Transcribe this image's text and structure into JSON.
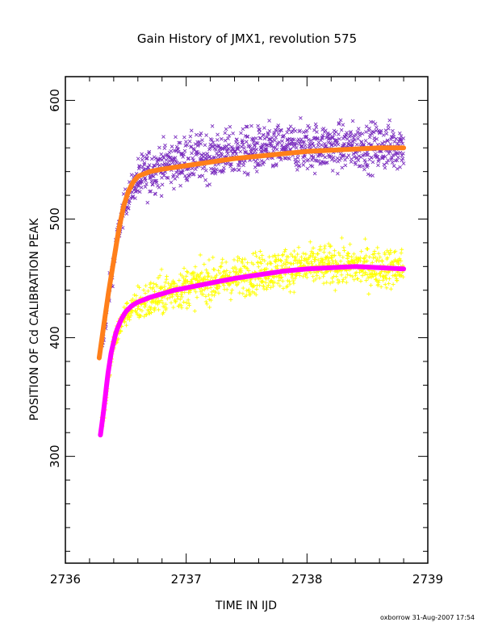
{
  "chart_data": {
    "type": "scatter",
    "title": "Gain History of JMX1, revolution 575",
    "xlabel": "TIME IN IJD",
    "ylabel": "POSITION OF Cd CALIBRATION PEAK",
    "xlim": [
      2736,
      2739
    ],
    "ylim": [
      210,
      620
    ],
    "x_ticks": [
      2736,
      2737,
      2738,
      2739
    ],
    "x_tick_labels": [
      "2736",
      "2737",
      "2738",
      "2739"
    ],
    "y_ticks": [
      300,
      400,
      500,
      600
    ],
    "y_tick_labels": [
      "300",
      "400",
      "500",
      "600"
    ],
    "grid": false,
    "legend": "none",
    "footer": "oxborrow 31-Aug-2007 17:54",
    "series": [
      {
        "marker": "x",
        "color": "#7b2fbf",
        "x": [
          2736.3,
          2736.35,
          2736.4,
          2736.45,
          2736.5,
          2736.55,
          2736.6,
          2736.7,
          2736.8,
          2736.9,
          2737.0,
          2737.2,
          2737.4,
          2737.6,
          2737.8,
          2738.0,
          2738.2,
          2738.4,
          2738.6,
          2738.8
        ],
        "values": [
          390,
          430,
          465,
          495,
          515,
          525,
          532,
          540,
          545,
          548,
          550,
          553,
          556,
          558,
          560,
          561,
          561,
          561,
          561,
          562
        ],
        "spread": 14
      },
      {
        "marker": "+",
        "color": "#ffff00",
        "x": [
          2736.3,
          2736.33,
          2736.36,
          2736.4,
          2736.45,
          2736.5,
          2736.55,
          2736.6,
          2736.7,
          2736.8,
          2736.9,
          2737.0,
          2737.2,
          2737.4,
          2737.6,
          2737.8,
          2738.0,
          2738.2,
          2738.4,
          2738.6,
          2738.8
        ],
        "values": [
          328,
          345,
          370,
          395,
          410,
          420,
          425,
          428,
          432,
          436,
          440,
          443,
          447,
          451,
          455,
          458,
          460,
          461,
          460,
          459,
          459
        ],
        "spread": 12
      },
      {
        "marker": "fit-line",
        "color": "#ff7f1a",
        "x": [
          2736.28,
          2736.32,
          2736.36,
          2736.4,
          2736.44,
          2736.48,
          2736.52,
          2736.56,
          2736.6,
          2736.7,
          2736.8,
          2737.0,
          2737.2,
          2737.4,
          2737.6,
          2737.8,
          2738.0,
          2738.2,
          2738.4,
          2738.6,
          2738.8
        ],
        "values": [
          383,
          412,
          440,
          465,
          490,
          510,
          523,
          531,
          536,
          540,
          542,
          545,
          548,
          551,
          553,
          555,
          557,
          558,
          559,
          560,
          560
        ]
      },
      {
        "marker": "fit-line",
        "color": "#ff00ff",
        "x": [
          2736.29,
          2736.31,
          2736.33,
          2736.35,
          2736.38,
          2736.42,
          2736.46,
          2736.5,
          2736.55,
          2736.6,
          2736.7,
          2736.8,
          2736.9,
          2737.0,
          2737.2,
          2737.4,
          2737.6,
          2737.8,
          2738.0,
          2738.2,
          2738.4,
          2738.6,
          2738.8
        ],
        "values": [
          318,
          333,
          350,
          368,
          388,
          405,
          415,
          422,
          427,
          430,
          434,
          437,
          440,
          442,
          446,
          450,
          453,
          456,
          458,
          459,
          460,
          459,
          458
        ]
      }
    ]
  }
}
